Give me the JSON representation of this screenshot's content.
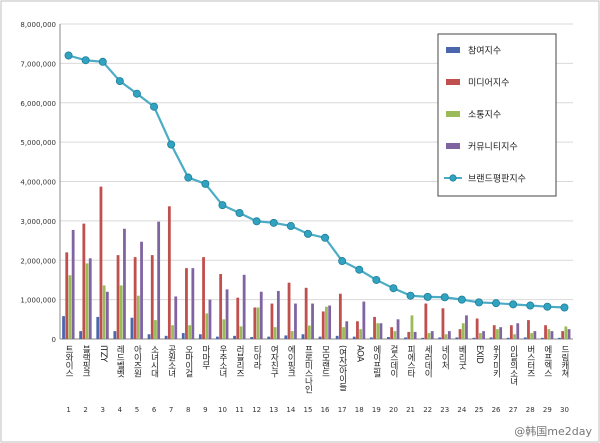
{
  "chart_data": {
    "type": "bar",
    "ylim": [
      0,
      8000000
    ],
    "yticks": [
      "0",
      "1,000,000",
      "2,000,000",
      "3,000,000",
      "4,000,000",
      "5,000,000",
      "6,000,000",
      "7,000,000",
      "8,000,000"
    ],
    "grid": true,
    "legend_position": "top-right",
    "categories": [
      "트와이스",
      "블랙핑크",
      "ITZY",
      "레드벨벳",
      "아이즈원",
      "소녀시대",
      "공원소녀",
      "오마이걸",
      "마마무",
      "우주소녀",
      "러블리즈",
      "티아라",
      "여자친구",
      "에이핑크",
      "프로미스나인",
      "모모랜드",
      "(여자)아이들",
      "AOA",
      "에이프릴",
      "걸스데이",
      "피에스타",
      "세러데이",
      "네이처",
      "베리굿",
      "EXID",
      "위키미키",
      "이달의소녀",
      "버스터즈",
      "에프엑스",
      "드림캐쳐"
    ],
    "ranks": [
      "1",
      "2",
      "3",
      "4",
      "5",
      "6",
      "7",
      "8",
      "9",
      "10",
      "11",
      "12",
      "13",
      "14",
      "15",
      "16",
      "17",
      "18",
      "19",
      "20",
      "21",
      "22",
      "23",
      "24",
      "25",
      "26",
      "27",
      "28",
      "29",
      "30"
    ],
    "series": [
      {
        "name": "참여지수",
        "color": "#4a66ac",
        "values": [
          580000,
          200000,
          560000,
          200000,
          540000,
          120000,
          80000,
          150000,
          120000,
          60000,
          80000,
          50000,
          60000,
          90000,
          120000,
          60000,
          80000,
          60000,
          40000,
          50000,
          40000,
          30000,
          40000,
          40000,
          30000,
          40000,
          30000,
          40000,
          30000,
          30000
        ]
      },
      {
        "name": "미디어지수",
        "color": "#c0504d",
        "values": [
          2200000,
          2930000,
          3870000,
          2130000,
          2080000,
          2130000,
          3370000,
          1800000,
          2080000,
          1650000,
          1050000,
          800000,
          900000,
          1430000,
          1300000,
          700000,
          1150000,
          450000,
          560000,
          300000,
          180000,
          900000,
          780000,
          250000,
          520000,
          350000,
          350000,
          480000,
          350000,
          200000
        ]
      },
      {
        "name": "소통지수",
        "color": "#9bbb59",
        "values": [
          1620000,
          1920000,
          1360000,
          1360000,
          1100000,
          480000,
          350000,
          350000,
          650000,
          500000,
          320000,
          800000,
          300000,
          200000,
          340000,
          820000,
          300000,
          250000,
          400000,
          200000,
          600000,
          150000,
          120000,
          400000,
          150000,
          250000,
          120000,
          150000,
          250000,
          320000
        ]
      },
      {
        "name": "커뮤니티지수",
        "color": "#8064a2",
        "values": [
          2770000,
          2050000,
          1200000,
          2800000,
          2470000,
          2980000,
          1080000,
          1800000,
          1000000,
          1260000,
          1630000,
          1200000,
          1220000,
          900000,
          900000,
          850000,
          450000,
          950000,
          400000,
          500000,
          180000,
          200000,
          200000,
          600000,
          200000,
          300000,
          400000,
          200000,
          200000,
          250000
        ]
      },
      {
        "name": "브랜드평판지수",
        "color": "#4bacc6",
        "values": [
          7200000,
          7080000,
          7040000,
          6550000,
          6230000,
          5900000,
          4940000,
          4100000,
          3940000,
          3400000,
          3200000,
          2990000,
          2950000,
          2870000,
          2670000,
          2570000,
          1980000,
          1760000,
          1500000,
          1290000,
          1100000,
          1070000,
          1060000,
          1000000,
          930000,
          910000,
          880000,
          850000,
          820000,
          800000
        ]
      }
    ]
  },
  "watermark": "@韩国me2day"
}
